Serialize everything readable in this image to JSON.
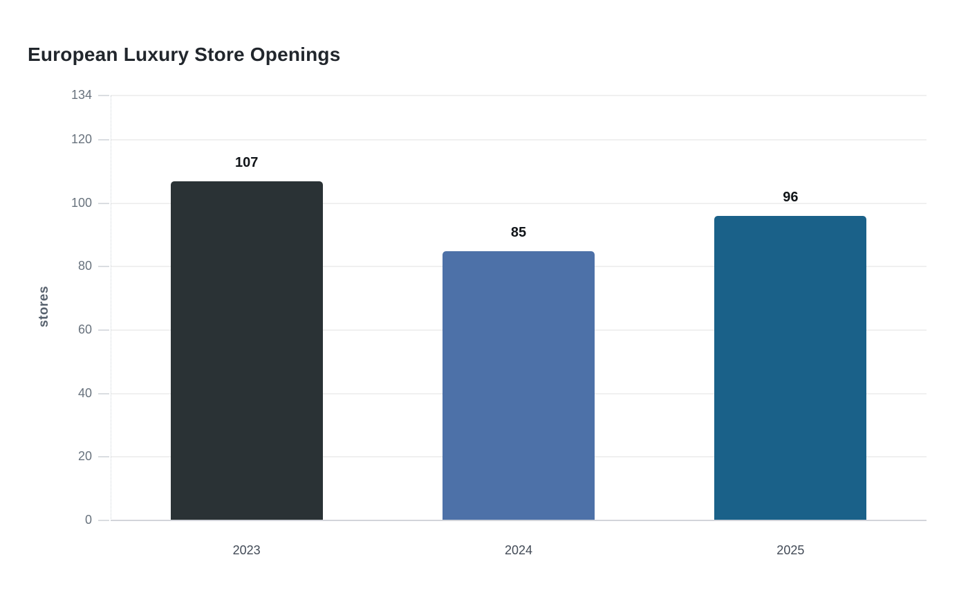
{
  "chart_data": {
    "type": "bar",
    "title": "European Luxury Store Openings",
    "ylabel": "stores",
    "xlabel": "",
    "categories": [
      "2023",
      "2024",
      "2025"
    ],
    "values": [
      107,
      85,
      96
    ],
    "value_labels": [
      "107",
      "85",
      "96"
    ],
    "bar_colors": [
      "#2a3235",
      "#4d71a8",
      "#1a6189"
    ],
    "yticks": [
      0,
      20,
      40,
      60,
      80,
      100,
      120,
      134
    ],
    "ylim": [
      0,
      134
    ],
    "grid": "horizontal-light",
    "legend": "none",
    "background": "#ffffff",
    "text_colors": {
      "title": "#21262c",
      "axis_label": "#58626e",
      "y_tick": "#68727d",
      "x_tick": "#424a56",
      "value_label": "#101418"
    }
  }
}
